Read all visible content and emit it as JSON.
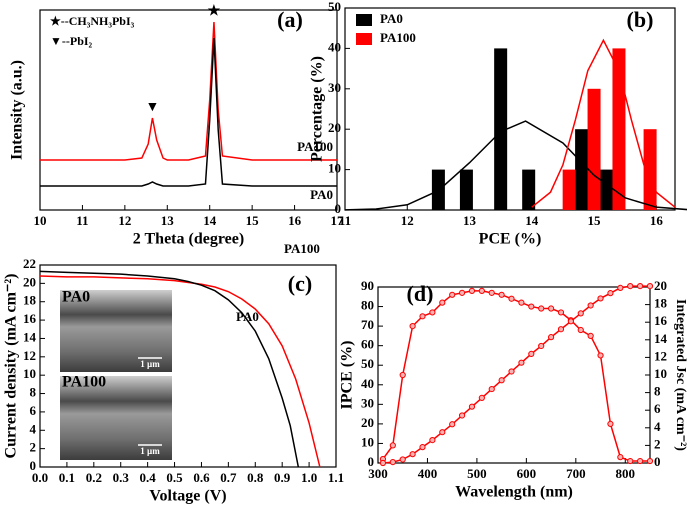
{
  "chart_data": [
    {
      "type": "line",
      "panel_label": "(a)",
      "xlabel": "2 Theta (degree)",
      "ylabel": "Intensity (a.u.)",
      "annotations": [
        "★--CH₃NH₃PbI₃",
        "▼--PbI₂"
      ],
      "peak_markers": [
        {
          "symbol": "▼",
          "x": 12.65
        },
        {
          "symbol": "★",
          "x": 14.1
        }
      ],
      "xlim": [
        10,
        17
      ],
      "xticks": [
        10,
        11,
        12,
        13,
        14,
        15,
        16,
        17
      ],
      "ylim": [
        0,
        100
      ],
      "x": [
        10,
        11,
        12,
        12.4,
        12.55,
        12.65,
        12.75,
        12.9,
        13,
        13.5,
        13.9,
        14.0,
        14.1,
        14.2,
        14.3,
        15,
        16,
        17
      ],
      "series": [
        {
          "name": "PA100",
          "color": "#ff0000",
          "values": [
            25,
            25,
            25,
            26,
            33,
            46,
            35,
            26,
            25,
            25,
            27,
            55,
            94,
            50,
            27,
            25,
            25,
            25
          ]
        },
        {
          "name": "PA0",
          "color": "#000000",
          "values": [
            12,
            12,
            12,
            12,
            13,
            14,
            13,
            12,
            12,
            12,
            13,
            45,
            86,
            40,
            13,
            12,
            12,
            12
          ]
        }
      ]
    },
    {
      "type": "bar",
      "panel_label": "(b)",
      "xlabel": "PCE (%)",
      "ylabel": "Percentage (%)",
      "legend": "upper left",
      "xlim": [
        11,
        16.3
      ],
      "xticks": [
        11,
        12,
        13,
        14,
        15,
        16
      ],
      "ylim": [
        0,
        50
      ],
      "yticks": [
        0,
        10,
        20,
        30,
        40,
        50
      ],
      "series": [
        {
          "name": "PA0",
          "color": "#000000",
          "x": [
            12.5,
            12.95,
            13.5,
            13.95,
            14.8,
            15.2
          ],
          "values": [
            10,
            10,
            40,
            10,
            20,
            10
          ]
        },
        {
          "name": "PA100",
          "color": "#ff0000",
          "x": [
            14.6,
            15.0,
            15.4,
            15.9
          ],
          "values": [
            10,
            30,
            40,
            20
          ]
        }
      ],
      "fit_curves": [
        {
          "color": "#000000",
          "x": [
            11,
            11.5,
            12,
            12.5,
            13,
            13.5,
            13.9,
            14.5,
            15,
            15.5,
            16,
            16.5
          ],
          "values": [
            0.03,
            0.24,
            1.3,
            4.8,
            11.7,
            19.4,
            22,
            16.6,
            8.6,
            3.0,
            0.7,
            0.1
          ]
        },
        {
          "color": "#ff0000",
          "x": [
            14.0,
            14.3,
            14.5,
            14.7,
            14.9,
            15.15,
            15.4,
            15.6,
            15.8,
            16.0,
            16.3
          ],
          "values": [
            0.7,
            4.4,
            11.2,
            22.3,
            34.5,
            42,
            34.5,
            22.3,
            11.2,
            4.4,
            0.7
          ]
        }
      ]
    },
    {
      "type": "line",
      "panel_label": "(c)",
      "xlabel": "Voltage (V)",
      "ylabel": "Current density (mA cm⁻²)",
      "inset_labels": [
        "PA0",
        "1 µm",
        "PA100",
        "1 µm"
      ],
      "xlim": [
        0,
        1.1
      ],
      "xticks": [
        {
          "value": 0,
          "label": "0.0"
        },
        0.1,
        0.2,
        0.3,
        0.4,
        0.5,
        0.6,
        0.7,
        0.8,
        0.9,
        {
          "value": 1,
          "label": "1.0"
        },
        1.1
      ],
      "ylim": [
        0,
        22
      ],
      "yticks": [
        0,
        2,
        4,
        6,
        8,
        10,
        12,
        14,
        16,
        18,
        20,
        22
      ],
      "series": [
        {
          "name": "PA100",
          "color": "#ff0000",
          "x": [
            0,
            0.1,
            0.2,
            0.3,
            0.4,
            0.5,
            0.6,
            0.65,
            0.7,
            0.75,
            0.8,
            0.85,
            0.9,
            0.95,
            1.0,
            1.04
          ],
          "values": [
            20.8,
            20.7,
            20.7,
            20.6,
            20.5,
            20.3,
            19.9,
            19.6,
            19.1,
            18.3,
            17.2,
            15.6,
            13.2,
            9.6,
            4.8,
            0
          ]
        },
        {
          "name": "PA0",
          "color": "#000000",
          "x": [
            0,
            0.1,
            0.2,
            0.3,
            0.4,
            0.5,
            0.55,
            0.6,
            0.65,
            0.7,
            0.75,
            0.8,
            0.85,
            0.9,
            0.93,
            0.96
          ],
          "values": [
            21.3,
            21.2,
            21.1,
            21.0,
            20.8,
            20.5,
            20.2,
            19.8,
            19.2,
            18.2,
            16.8,
            14.8,
            11.8,
            7.5,
            4.5,
            0
          ]
        }
      ]
    },
    {
      "type": "line",
      "panel_label": "(d)",
      "xlabel": "Wavelength (nm)",
      "ylabel": "IPCE (%)",
      "y2label": "Integrated Jsc (mA cm⁻²)",
      "xlim": [
        300,
        850
      ],
      "xticks": [
        300,
        400,
        500,
        600,
        700,
        800
      ],
      "ylim": [
        0,
        90
      ],
      "yticks": [
        0,
        10,
        20,
        30,
        40,
        50,
        60,
        70,
        80,
        90
      ],
      "y2lim": [
        0,
        20
      ],
      "y2ticks": [
        0,
        2,
        4,
        6,
        8,
        10,
        12,
        14,
        16,
        18,
        20
      ],
      "x": [
        310,
        330,
        350,
        370,
        390,
        410,
        430,
        450,
        470,
        490,
        510,
        530,
        550,
        570,
        590,
        610,
        630,
        650,
        670,
        690,
        710,
        730,
        750,
        770,
        790,
        810,
        830,
        850
      ],
      "series": [
        {
          "name": "IPCE",
          "color": "#ff0000",
          "marker": true,
          "values": [
            2,
            9,
            45,
            70,
            75,
            77,
            82,
            86,
            87,
            88,
            88,
            87,
            86,
            84,
            82,
            80,
            79,
            79,
            77,
            73,
            68,
            65,
            55,
            20,
            3,
            1,
            1,
            1
          ]
        },
        {
          "name": "Integrated Jsc",
          "color": "#ff0000",
          "marker": true,
          "axis": "y2",
          "values": [
            0,
            0.1,
            0.4,
            1.0,
            1.8,
            2.6,
            3.5,
            4.4,
            5.4,
            6.4,
            7.4,
            8.4,
            9.4,
            10.4,
            11.4,
            12.4,
            13.3,
            14.3,
            15.2,
            16.1,
            17.0,
            17.9,
            18.7,
            19.3,
            19.9,
            20.1,
            20.1,
            20.1
          ]
        }
      ]
    }
  ]
}
